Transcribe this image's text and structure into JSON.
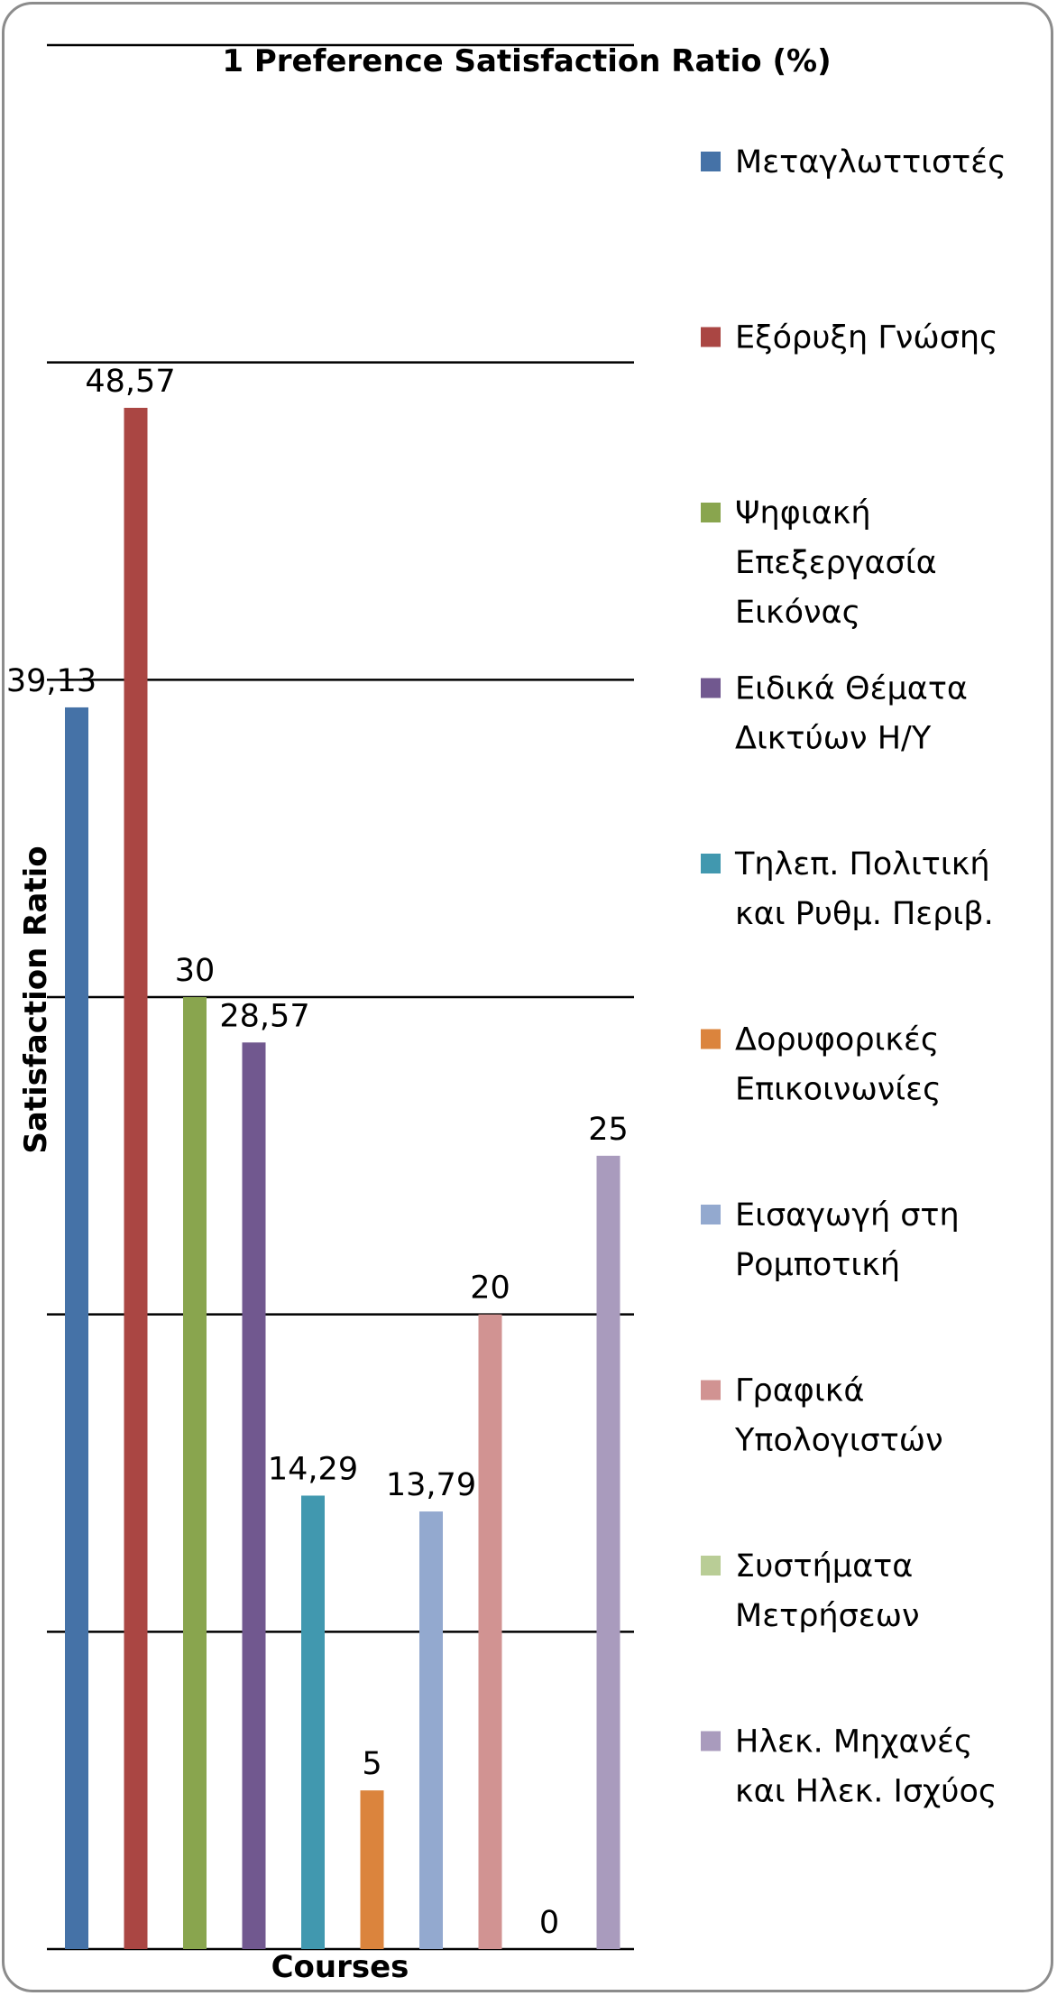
{
  "chart_data": {
    "type": "bar",
    "title": "1 Preference Satisfaction Ratio (%)",
    "xlabel": "Courses",
    "ylabel": "Satisfaction Ratio",
    "ylim": [
      0,
      60
    ],
    "grid": true,
    "legend_position": "right",
    "series": [
      {
        "name": "Μεταγλωττιστές",
        "value": 39.13,
        "label": "39,13",
        "color": "#4572a7",
        "legend_lines": [
          "Μεταγλωττιστές"
        ]
      },
      {
        "name": "Εξόρυξη Γνώσης",
        "value": 48.57,
        "label": "48,57",
        "color": "#aa4643",
        "legend_lines": [
          "Εξόρυξη Γνώσης"
        ]
      },
      {
        "name": "Ψηφιακή Επεξεργασία Εικόνας",
        "value": 30,
        "label": "30",
        "color": "#89a54e",
        "legend_lines": [
          "Ψηφιακή",
          "Επεξεργασία",
          "Εικόνας"
        ]
      },
      {
        "name": "Ειδικά Θέματα Δικτύων Η/Υ",
        "value": 28.57,
        "label": "28,57",
        "color": "#71588f",
        "legend_lines": [
          "Ειδικά Θέματα",
          "Δικτύων Η/Υ"
        ]
      },
      {
        "name": "Τηλεπ. Πολιτική και Ρυθμ. Περιβ.",
        "value": 14.29,
        "label": "14,29",
        "color": "#4198af",
        "legend_lines": [
          "Τηλεπ. Πολιτική",
          "και Ρυθμ. Περιβ."
        ]
      },
      {
        "name": "Δορυφορικές Επικοινωνίες",
        "value": 5,
        "label": "5",
        "color": "#db843d",
        "legend_lines": [
          "Δορυφορικές",
          "Επικοινωνίες"
        ]
      },
      {
        "name": "Εισαγωγή στη Ρομποτική",
        "value": 13.79,
        "label": "13,79",
        "color": "#93a9cf",
        "legend_lines": [
          "Εισαγωγή στη",
          "Ρομποτική"
        ]
      },
      {
        "name": "Γραφικά Υπολογιστών",
        "value": 20,
        "label": "20",
        "color": "#d19392",
        "legend_lines": [
          "Γραφικά",
          "Υπολογιστών"
        ]
      },
      {
        "name": "Συστήματα Μετρήσεων",
        "value": 0,
        "label": "0",
        "color": "#b9cd96",
        "legend_lines": [
          "Συστήματα",
          "Μετρήσεων"
        ]
      },
      {
        "name": "Ηλεκ. Μηχανές και Ηλεκ. Ισχύος",
        "value": 25,
        "label": "25",
        "color": "#a99bbd",
        "legend_lines": [
          "Ηλεκ. Μηχανές",
          "και Ηλεκ. Ισχύος"
        ]
      }
    ]
  }
}
